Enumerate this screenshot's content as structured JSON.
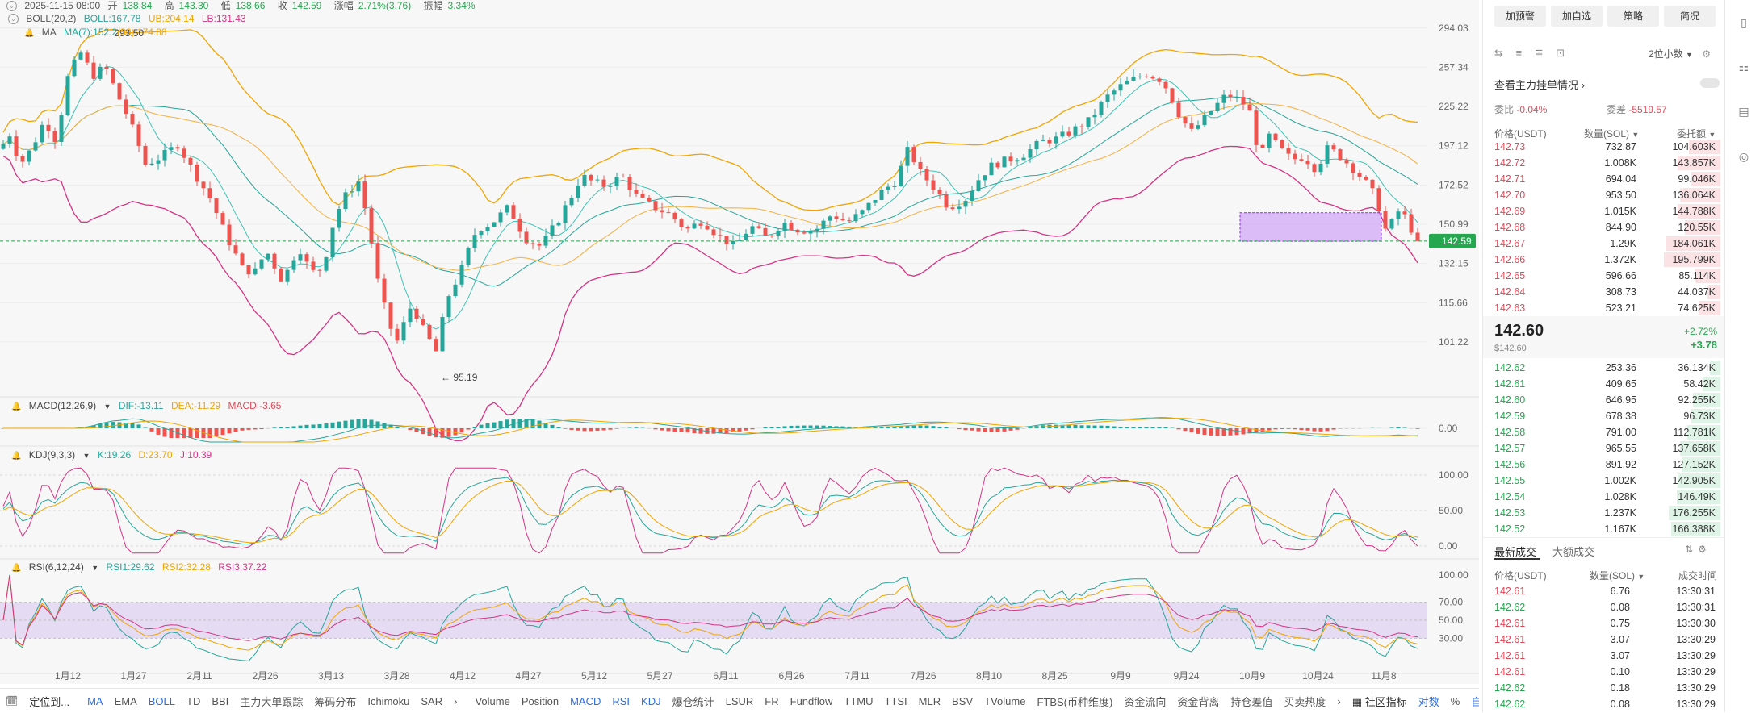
{
  "header": {
    "date": "2025-11-15 08:00",
    "open_label": "开",
    "open": "138.84",
    "high_label": "高",
    "high": "143.30",
    "low_label": "低",
    "low": "138.66",
    "close_label": "收",
    "close": "142.59",
    "change_label": "涨幅",
    "change": "2.71%(3.76)",
    "amp_label": "振幅",
    "amp": "3.34%",
    "boll_name": "BOLL(20,2)",
    "boll": "BOLL:167.78",
    "ub": "UB:204.14",
    "lb": "LB:131.43",
    "ma_name": "MA",
    "ma7": "MA(7):152.2",
    "ma30": "(30):174.88"
  },
  "colors": {
    "up": "#26a69a",
    "down": "#ef5350",
    "accent": "#2b6de0",
    "price_tag": "#25a750",
    "zone": "#c58cf5"
  },
  "chart_data": {
    "type": "candlestick",
    "ylim": [
      88,
      302
    ],
    "yticks": [
      "294.03",
      "257.34",
      "225.22",
      "197.12",
      "172.52",
      "150.99",
      "132.15",
      "115.66",
      "101.22"
    ],
    "xticks": [
      "1月12",
      "1月27",
      "2月11",
      "2月26",
      "3月13",
      "3月28",
      "4月12",
      "4月27",
      "5月12",
      "5月27",
      "6月11",
      "6月26",
      "7月11",
      "7月26",
      "8月10",
      "8月25",
      "9月9",
      "9月24",
      "10月9",
      "10月24",
      "11月8"
    ],
    "current_price": "142.59",
    "annotations": {
      "high": "293.50",
      "low": "95.19"
    }
  },
  "macd": {
    "name": "MACD(12,26,9)",
    "dif": "DIF:-13.11",
    "dea": "DEA:-11.29",
    "macd": "MACD:-3.65",
    "zero": "0.00"
  },
  "kdj": {
    "name": "KDJ(9,3,3)",
    "k": "K:19.26",
    "d": "D:23.70",
    "j": "J:10.39",
    "ticks": [
      "100.00",
      "50.00",
      "0.00"
    ]
  },
  "rsi": {
    "name": "RSI(6,12,24)",
    "r1": "RSI1:29.62",
    "r2": "RSI2:32.28",
    "r3": "RSI3:37.22",
    "ticks": [
      "100.00",
      "70.00",
      "50.00",
      "30.00"
    ]
  },
  "bottombar": {
    "locate": "定位到...",
    "items": [
      "MA",
      "EMA",
      "BOLL",
      "TD",
      "BBI",
      "主力大单跟踪",
      "筹码分布",
      "Ichimoku",
      "SAR"
    ],
    "items2": [
      "Volume",
      "Position",
      "MACD",
      "RSI",
      "KDJ",
      "爆仓统计",
      "LSUR",
      "FR",
      "Fundflow",
      "TTMU",
      "TTSI",
      "MLR",
      "BSV",
      "TVolume",
      "FTBS(币种维度)",
      "资金流向",
      "资金背离",
      "持仓差值",
      "买卖热度"
    ],
    "community": "社区指标",
    "contract": "对数",
    "percent": "%",
    "auto": "自动"
  },
  "right": {
    "buttons": [
      "加预警",
      "加自选",
      "策略",
      "简况"
    ],
    "precision": "2位小数",
    "main_order": "查看主力挂单情况",
    "weibi_label": "委比",
    "weibi": "-0.04%",
    "weicha_label": "委差",
    "weicha": "-5519.57",
    "col_price": "价格(USDT)",
    "col_qty": "数量(SOL)",
    "col_total": "委托额",
    "asks": [
      {
        "p": "142.73",
        "q": "732.87",
        "t": "104.603K",
        "w": 0.55
      },
      {
        "p": "142.72",
        "q": "1.008K",
        "t": "143.857K",
        "w": 0.75
      },
      {
        "p": "142.71",
        "q": "694.04",
        "t": "99.046K",
        "w": 0.52
      },
      {
        "p": "142.70",
        "q": "953.50",
        "t": "136.064K",
        "w": 0.71
      },
      {
        "p": "142.69",
        "q": "1.015K",
        "t": "144.788K",
        "w": 0.76
      },
      {
        "p": "142.68",
        "q": "844.90",
        "t": "120.55K",
        "w": 0.63
      },
      {
        "p": "142.67",
        "q": "1.29K",
        "t": "184.061K",
        "w": 0.96
      },
      {
        "p": "142.66",
        "q": "1.372K",
        "t": "195.799K",
        "w": 1.0
      },
      {
        "p": "142.65",
        "q": "596.66",
        "t": "85.114K",
        "w": 0.45
      },
      {
        "p": "142.64",
        "q": "308.73",
        "t": "44.037K",
        "w": 0.23
      },
      {
        "p": "142.63",
        "q": "523.21",
        "t": "74.625K",
        "w": 0.39
      }
    ],
    "last": "142.60",
    "last_usd": "$142.60",
    "pct": "+2.72%",
    "chg": "+3.78",
    "bids": [
      {
        "p": "142.62",
        "q": "253.36",
        "t": "36.134K",
        "w": 0.19
      },
      {
        "p": "142.61",
        "q": "409.65",
        "t": "58.42K",
        "w": 0.31
      },
      {
        "p": "142.60",
        "q": "646.95",
        "t": "92.255K",
        "w": 0.48
      },
      {
        "p": "142.59",
        "q": "678.38",
        "t": "96.73K",
        "w": 0.51
      },
      {
        "p": "142.58",
        "q": "791.00",
        "t": "112.781K",
        "w": 0.59
      },
      {
        "p": "142.57",
        "q": "965.55",
        "t": "137.658K",
        "w": 0.72
      },
      {
        "p": "142.56",
        "q": "891.92",
        "t": "127.152K",
        "w": 0.67
      },
      {
        "p": "142.55",
        "q": "1.002K",
        "t": "142.905K",
        "w": 0.75
      },
      {
        "p": "142.54",
        "q": "1.028K",
        "t": "146.49K",
        "w": 0.77
      },
      {
        "p": "142.53",
        "q": "1.237K",
        "t": "176.255K",
        "w": 0.92
      },
      {
        "p": "142.52",
        "q": "1.167K",
        "t": "166.388K",
        "w": 0.87
      }
    ],
    "tab_trades": "最新成交",
    "tab_big": "大额成交",
    "trade_cols": [
      "价格(USDT)",
      "数量(SOL)",
      "成交时间"
    ],
    "trades": [
      {
        "p": "142.61",
        "q": "6.76",
        "t": "13:30:31",
        "s": "r"
      },
      {
        "p": "142.62",
        "q": "0.08",
        "t": "13:30:31",
        "s": "g"
      },
      {
        "p": "142.61",
        "q": "0.75",
        "t": "13:30:30",
        "s": "r"
      },
      {
        "p": "142.61",
        "q": "3.07",
        "t": "13:30:29",
        "s": "r"
      },
      {
        "p": "142.61",
        "q": "3.07",
        "t": "13:30:29",
        "s": "r"
      },
      {
        "p": "142.61",
        "q": "0.10",
        "t": "13:30:29",
        "s": "r"
      },
      {
        "p": "142.62",
        "q": "0.18",
        "t": "13:30:29",
        "s": "g"
      },
      {
        "p": "142.62",
        "q": "0.08",
        "t": "13:30:29",
        "s": "g"
      }
    ]
  }
}
